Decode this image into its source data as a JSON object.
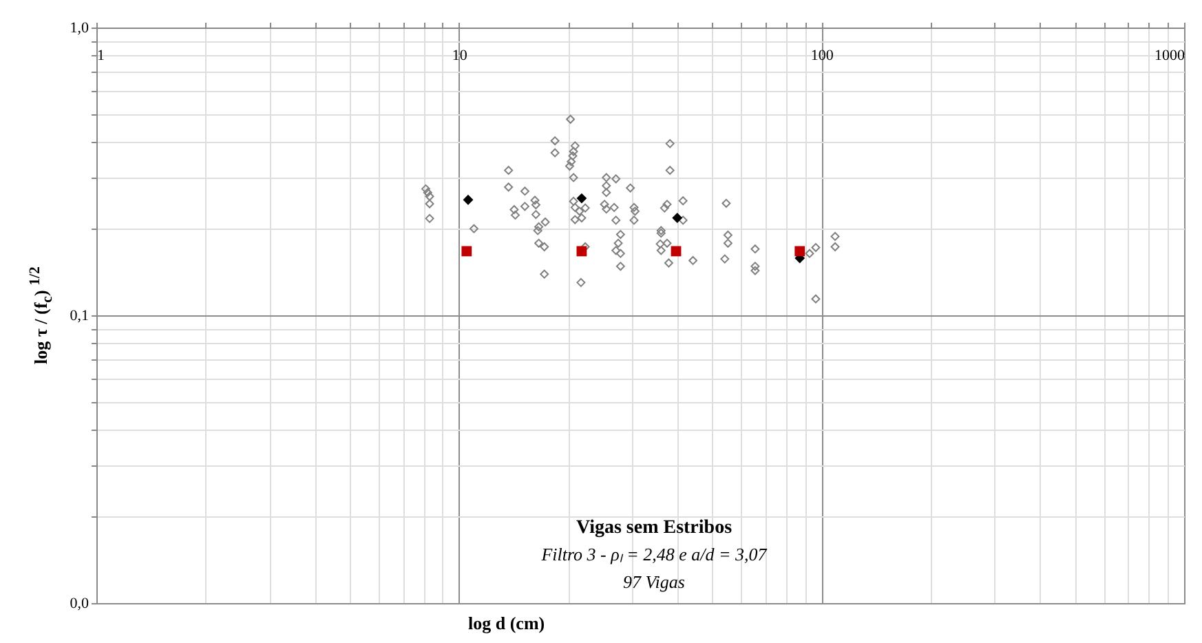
{
  "chart_data": {
    "type": "scatter",
    "xlabel": "log d (cm)",
    "ylabel": "log τ / (f$_{c}$) $^{1/2}$",
    "annotations": [
      "Vigas sem Estribos",
      "Filtro 3 - ρₗ = 2,48 e a/d = 3,07",
      "97 Vigas"
    ],
    "log": "xy",
    "grid": true,
    "xlim": [
      1,
      1000
    ],
    "ylim": [
      0.01,
      1
    ],
    "xticks": [
      1,
      {
        "value": 2,
        "label": null
      },
      {
        "value": 3,
        "label": null
      },
      {
        "value": 4,
        "label": null
      },
      {
        "value": 5,
        "label": null
      },
      {
        "value": 6,
        "label": null
      },
      {
        "value": 7,
        "label": null
      },
      {
        "value": 8,
        "label": null
      },
      {
        "value": 9,
        "label": null
      },
      10,
      {
        "value": 20,
        "label": null
      },
      {
        "value": 30,
        "label": null
      },
      {
        "value": 40,
        "label": null
      },
      {
        "value": 50,
        "label": null
      },
      {
        "value": 60,
        "label": null
      },
      {
        "value": 70,
        "label": null
      },
      {
        "value": 80,
        "label": null
      },
      {
        "value": 90,
        "label": null
      },
      100,
      {
        "value": 200,
        "label": null
      },
      {
        "value": 300,
        "label": null
      },
      {
        "value": 400,
        "label": null
      },
      {
        "value": 500,
        "label": null
      },
      {
        "value": 600,
        "label": null
      },
      {
        "value": 700,
        "label": null
      },
      {
        "value": 800,
        "label": null
      },
      {
        "value": 900,
        "label": null
      },
      1000
    ],
    "yticks": [
      {
        "value": 0.01,
        "label": "0,0"
      },
      {
        "value": 0.02,
        "label": null
      },
      {
        "value": 0.03,
        "label": null
      },
      {
        "value": 0.04,
        "label": null
      },
      {
        "value": 0.05,
        "label": null
      },
      {
        "value": 0.06,
        "label": null
      },
      {
        "value": 0.07,
        "label": null
      },
      {
        "value": 0.08,
        "label": null
      },
      {
        "value": 0.09,
        "label": null
      },
      {
        "value": 0.1,
        "label": "0,1"
      },
      {
        "value": 0.2,
        "label": null
      },
      {
        "value": 0.3,
        "label": null
      },
      {
        "value": 0.4,
        "label": null
      },
      {
        "value": 0.5,
        "label": null
      },
      {
        "value": 0.6,
        "label": null
      },
      {
        "value": 0.7,
        "label": null
      },
      {
        "value": 0.8,
        "label": null
      },
      {
        "value": 0.9,
        "label": null
      },
      {
        "value": 1,
        "label": "1,0"
      }
    ],
    "series": [
      {
        "color": "#808080",
        "marker": "diamond",
        "x": [
          8.1,
          8.2,
          8.3,
          8.3,
          8.3,
          11.0,
          13.7,
          13.7,
          15.2,
          14.2,
          14.3,
          15.2,
          16.2,
          16.3,
          16.3,
          17.3,
          16.6,
          16.5,
          16.6,
          17.2,
          17.2,
          18.4,
          18.4,
          20.3,
          20.9,
          20.7,
          20.6,
          20.4,
          20.2,
          20.7,
          20.7,
          20.9,
          22.3,
          21.5,
          20.9,
          21.8,
          22.3,
          21.7,
          25.5,
          27.1,
          25.5,
          25.5,
          25.2,
          25.5,
          26.8,
          27.1,
          27.9,
          27.5,
          27.1,
          27.9,
          27.9,
          29.7,
          30.4,
          30.4,
          30.6,
          38.2,
          38.2,
          37.5,
          36.9,
          41.5,
          41.5,
          36.1,
          36.1,
          37.5,
          35.9,
          36.1,
          37.9,
          44.2,
          54.6,
          55.2,
          55.2,
          54.1,
          65.6,
          65.6,
          65.6,
          92.7,
          96.4,
          96.4,
          109,
          109
        ],
        "values": [
          0.275,
          0.267,
          0.259,
          0.244,
          0.217,
          0.2,
          0.319,
          0.279,
          0.27,
          0.233,
          0.223,
          0.239,
          0.251,
          0.242,
          0.224,
          0.211,
          0.203,
          0.197,
          0.178,
          0.173,
          0.139,
          0.404,
          0.367,
          0.48,
          0.388,
          0.371,
          0.358,
          0.342,
          0.33,
          0.301,
          0.249,
          0.237,
          0.236,
          0.23,
          0.215,
          0.218,
          0.173,
          0.13,
          0.301,
          0.298,
          0.282,
          0.267,
          0.243,
          0.234,
          0.237,
          0.214,
          0.191,
          0.178,
          0.168,
          0.164,
          0.148,
          0.277,
          0.237,
          0.214,
          0.23,
          0.395,
          0.319,
          0.243,
          0.236,
          0.25,
          0.214,
          0.197,
          0.193,
          0.178,
          0.177,
          0.168,
          0.152,
          0.155,
          0.245,
          0.19,
          0.178,
          0.157,
          0.17,
          0.148,
          0.143,
          0.164,
          0.172,
          0.114,
          0.188,
          0.173
        ]
      },
      {
        "color": "#000000",
        "marker": "diamond",
        "x": [
          10.6,
          21.8,
          40.0,
          87.1
        ],
        "values": [
          0.252,
          0.255,
          0.218,
          0.158
        ]
      },
      {
        "color": "#c00000",
        "marker": "square",
        "x": [
          10.5,
          21.8,
          39.7,
          87.1
        ],
        "values": [
          0.167,
          0.167,
          0.167,
          0.167
        ]
      }
    ]
  }
}
